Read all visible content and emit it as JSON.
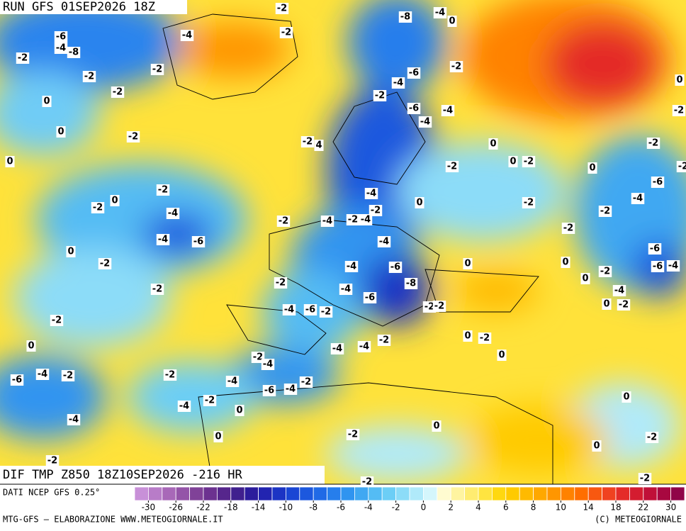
{
  "header": {
    "run": "RUN GFS 01SEP2026 18Z",
    "field": "DIF TMP Z850 18Z10SEP2026 -216 HR"
  },
  "footer": {
    "source": "DATI NCEP GFS 0.25°",
    "credit": "MTG-GFS — ELABORAZIONE WWW.METEOGIORNALE.IT",
    "copyright": "(C) METEOGIORNALE"
  },
  "contour_labels": [
    -2,
    -8,
    -4,
    0,
    -6,
    -4,
    -2,
    -4,
    -8,
    -2,
    -2,
    -2,
    -6,
    -2,
    -4,
    -2,
    0,
    0,
    -2,
    -6,
    -4,
    -2,
    -4,
    0,
    -2,
    -2,
    4,
    0,
    -2,
    0,
    -2,
    0,
    -2,
    0,
    -2,
    -2,
    -4,
    -6,
    0,
    -2,
    0,
    -4,
    -2,
    -4,
    -2,
    -2,
    -2,
    -4,
    -2,
    -4,
    -4,
    -6,
    -2,
    -4,
    -6,
    0,
    -2,
    0,
    -4,
    -6,
    0,
    -6,
    -4,
    -2,
    0,
    -2,
    -8,
    -2,
    -4,
    -4,
    -6,
    -4,
    -6,
    -2,
    -2,
    -2,
    0,
    -2,
    -2,
    0,
    -2,
    0,
    -4,
    -4,
    -2,
    0,
    -2,
    -4,
    -6,
    -4,
    -2,
    -2,
    -4,
    -2,
    -6,
    -4,
    0,
    -2,
    -4,
    0,
    -4,
    0,
    0,
    -2,
    -2,
    0,
    -2,
    -2,
    -2
  ],
  "legend": {
    "colors": [
      "#c890d8",
      "#b87cc8",
      "#a868b8",
      "#9454a8",
      "#804298",
      "#6c3290",
      "#56268c",
      "#40208e",
      "#2c1c9c",
      "#2224b0",
      "#1c34c4",
      "#1a46d4",
      "#1c58de",
      "#206ae6",
      "#267eec",
      "#3094f0",
      "#40a8f2",
      "#54bcf4",
      "#6ccef6",
      "#8cdcf8",
      "#b0eafa",
      "#d4f6fc",
      "#fffbd0",
      "#fff4a0",
      "#ffec70",
      "#ffe440",
      "#ffd810",
      "#ffca00",
      "#ffba00",
      "#ffa800",
      "#ff9600",
      "#ff8200",
      "#ff6e00",
      "#f85810",
      "#f04220",
      "#e42c28",
      "#d41c30",
      "#c01038",
      "#a80840",
      "#900448"
    ],
    "ticks": [
      -30,
      -26,
      -22,
      -18,
      -14,
      -10,
      -8,
      -6,
      -4,
      -2,
      0,
      2,
      4,
      6,
      8,
      10,
      14,
      18,
      22,
      30
    ]
  }
}
